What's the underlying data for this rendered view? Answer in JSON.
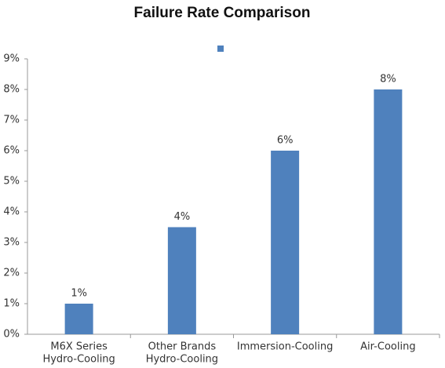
{
  "chart_data": {
    "type": "bar",
    "title": "Failure Rate Comparison",
    "categories": [
      [
        "M6X Series",
        "Hydro-Cooling"
      ],
      [
        "Other Brands",
        "Hydro-Cooling"
      ],
      [
        "Immersion-Cooling"
      ],
      [
        "Air-Cooling"
      ]
    ],
    "series": [
      {
        "color": "#4f81bd",
        "values": [
          1,
          3.5,
          6,
          8
        ],
        "value_labels": [
          "1%",
          "4%",
          "6%",
          "8%"
        ]
      }
    ],
    "ylim": [
      0,
      9
    ],
    "yticks": [
      {
        "value": 0,
        "label": "0%"
      },
      {
        "value": 1,
        "label": "1%"
      },
      {
        "value": 2,
        "label": "2%"
      },
      {
        "value": 3,
        "label": "3%"
      },
      {
        "value": 4,
        "label": "4%"
      },
      {
        "value": 5,
        "label": "5%"
      },
      {
        "value": 6,
        "label": "6%"
      },
      {
        "value": 7,
        "label": "7%"
      },
      {
        "value": 8,
        "label": "8%"
      },
      {
        "value": 9,
        "label": "9%"
      }
    ],
    "grid": false,
    "legend": "top"
  }
}
